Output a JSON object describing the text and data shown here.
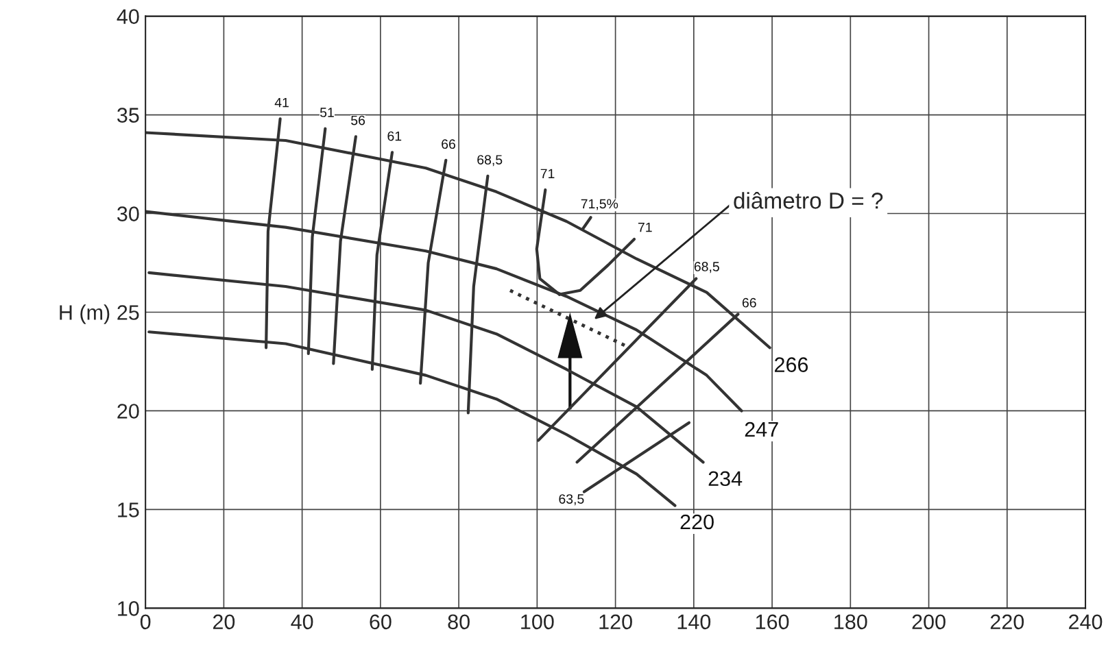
{
  "chart_data": {
    "type": "line",
    "ylabel": "H (m)",
    "xlim": [
      0,
      240
    ],
    "xticks": [
      0,
      20,
      40,
      60,
      80,
      100,
      120,
      140,
      160,
      180,
      200,
      220,
      240
    ],
    "ylim": [
      10,
      40
    ],
    "yticks": [
      10,
      15,
      20,
      25,
      30,
      35,
      40
    ],
    "grid": true,
    "legend": false,
    "series": [
      {
        "name": "266",
        "color": "#333333",
        "x": [
          0,
          35.8,
          71.6,
          89.6,
          107.5,
          125.4,
          143.3,
          159.4
        ],
        "values": [
          34.1,
          33.7,
          32.3,
          31.1,
          29.6,
          27.7,
          26.0,
          23.2
        ]
      },
      {
        "name": "247",
        "color": "#333333",
        "x": [
          0,
          35.8,
          71.6,
          89.6,
          107.5,
          125.4,
          143.3,
          152.2
        ],
        "values": [
          30.1,
          29.3,
          28.1,
          27.2,
          25.8,
          24.1,
          21.8,
          20.0
        ]
      },
      {
        "name": "234",
        "color": "#333333",
        "x": [
          0.9,
          35.8,
          71.6,
          89.6,
          107.5,
          125.4,
          142.4
        ],
        "values": [
          27.0,
          26.3,
          25.1,
          23.9,
          22.1,
          20.2,
          17.4
        ]
      },
      {
        "name": "220",
        "color": "#333333",
        "x": [
          0.9,
          35.8,
          71.6,
          89.6,
          107.5,
          125.4,
          135.2
        ],
        "values": [
          24.0,
          23.4,
          21.8,
          20.6,
          18.8,
          16.8,
          15.2
        ]
      },
      {
        "name": "41",
        "color": "#333333",
        "x": [
          30.8,
          31.3,
          34.4
        ],
        "values": [
          23.2,
          29.1,
          34.8
        ]
      },
      {
        "name": "51",
        "color": "#333333",
        "x": [
          41.6,
          42.6,
          45.9
        ],
        "values": [
          22.9,
          28.8,
          34.3
        ]
      },
      {
        "name": "56",
        "color": "#333333",
        "x": [
          48.0,
          49.8,
          53.7
        ],
        "values": [
          22.4,
          28.6,
          33.9
        ]
      },
      {
        "name": "61",
        "color": "#333333",
        "x": [
          57.9,
          59.1,
          63.0
        ],
        "values": [
          22.1,
          27.9,
          33.1
        ]
      },
      {
        "name": "66",
        "color": "#333333",
        "x": [
          70.2,
          72.2,
          76.7
        ],
        "values": [
          21.4,
          27.5,
          32.7
        ]
      },
      {
        "name": "68,5",
        "color": "#333333",
        "x": [
          82.4,
          83.8,
          87.4
        ],
        "values": [
          19.9,
          26.3,
          31.9
        ]
      },
      {
        "name": "71",
        "color": "#333333",
        "x": [
          105.7,
          100.7,
          99.9,
          102.1
        ],
        "values": [
          25.9,
          26.7,
          28.2,
          31.2
        ]
      },
      {
        "name": "71",
        "color": "#333333",
        "x": [
          105.7,
          111.0,
          118.2,
          124.8
        ],
        "values": [
          25.9,
          26.1,
          27.4,
          28.7
        ]
      },
      {
        "name": "71,5%",
        "color": "#333333",
        "x": [
          111.6,
          113.7
        ],
        "values": [
          29.2,
          29.8
        ]
      },
      {
        "name": "68,5",
        "color": "#333333",
        "x": [
          100.3,
          140.6
        ],
        "values": [
          18.5,
          26.7
        ]
      },
      {
        "name": "66",
        "color": "#333333",
        "x": [
          110.2,
          151.3
        ],
        "values": [
          17.4,
          24.9
        ]
      },
      {
        "name": "63,5",
        "color": "#333333",
        "x": [
          138.8,
          112.0
        ],
        "values": [
          19.4,
          15.9
        ]
      },
      {
        "color": "#333333",
        "line_style": "dotted",
        "x": [
          93.1,
          123.6
        ],
        "values": [
          26.1,
          23.2
        ]
      }
    ],
    "annotations": [
      "diâmetro D = ?"
    ]
  }
}
